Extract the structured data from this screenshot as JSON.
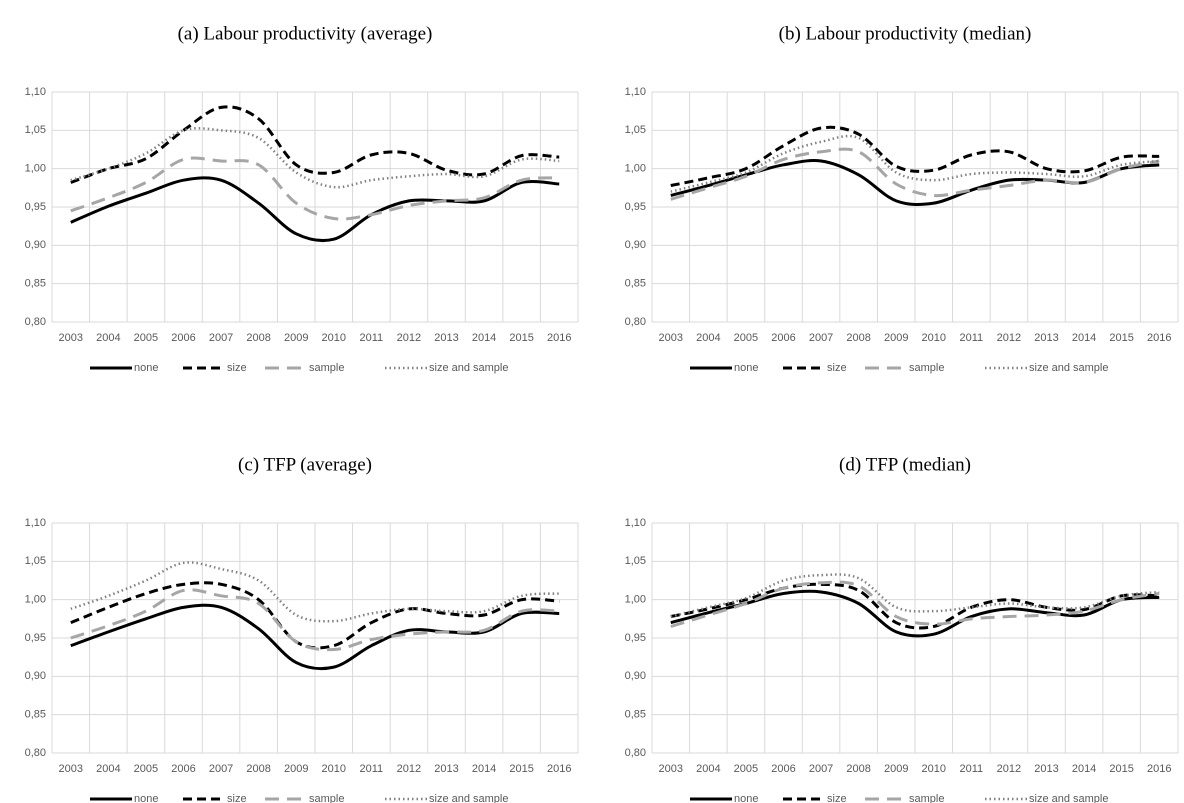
{
  "chart_data": [
    {
      "type": "line",
      "title": "(a) Labour productivity (average)",
      "categories": [
        "2003",
        "2004",
        "2005",
        "2006",
        "2007",
        "2008",
        "2009",
        "2010",
        "2011",
        "2012",
        "2013",
        "2014",
        "2015",
        "2016"
      ],
      "ylim": [
        0.8,
        1.1
      ],
      "yticks": [
        {
          "value": 0.8,
          "label": "0,80"
        },
        {
          "value": 0.85,
          "label": "0,85"
        },
        {
          "value": 0.9,
          "label": "0,90"
        },
        {
          "value": 0.95,
          "label": "0,95"
        },
        {
          "value": 1.0,
          "label": "1,00"
        },
        {
          "value": 1.05,
          "label": "1,05"
        },
        {
          "value": 1.1,
          "label": "1,10"
        }
      ],
      "grid": true,
      "series": [
        {
          "name": "none",
          "color": "#000000",
          "values": [
            0.93,
            0.951,
            0.968,
            0.985,
            0.985,
            0.955,
            0.915,
            0.908,
            0.94,
            0.958,
            0.958,
            0.958,
            0.982,
            0.98
          ]
        },
        {
          "name": "size",
          "color": "#000000",
          "values": [
            0.982,
            1.0,
            1.013,
            1.05,
            1.08,
            1.065,
            1.005,
            0.995,
            1.018,
            1.02,
            0.998,
            0.993,
            1.017,
            1.015
          ]
        },
        {
          "name": "sample",
          "color": "#a6a6a6",
          "values": [
            0.945,
            0.962,
            0.982,
            1.012,
            1.01,
            1.005,
            0.955,
            0.935,
            0.94,
            0.952,
            0.958,
            0.962,
            0.985,
            0.988
          ]
        },
        {
          "name": "size and sample",
          "color": "#808080",
          "values": [
            0.985,
            1.0,
            1.02,
            1.05,
            1.05,
            1.04,
            0.995,
            0.976,
            0.985,
            0.99,
            0.993,
            0.99,
            1.012,
            1.01
          ]
        }
      ]
    },
    {
      "type": "line",
      "title": "(b) Labour productivity (median)",
      "categories": [
        "2003",
        "2004",
        "2005",
        "2006",
        "2007",
        "2008",
        "2009",
        "2010",
        "2011",
        "2012",
        "2013",
        "2014",
        "2015",
        "2016"
      ],
      "ylim": [
        0.8,
        1.1
      ],
      "yticks": [
        {
          "value": 0.8,
          "label": "0,80"
        },
        {
          "value": 0.85,
          "label": "0,85"
        },
        {
          "value": 0.9,
          "label": "0,90"
        },
        {
          "value": 0.95,
          "label": "0,95"
        },
        {
          "value": 1.0,
          "label": "1,00"
        },
        {
          "value": 1.05,
          "label": "1,05"
        },
        {
          "value": 1.1,
          "label": "1,10"
        }
      ],
      "grid": true,
      "series": [
        {
          "name": "none",
          "color": "#000000",
          "values": [
            0.965,
            0.978,
            0.992,
            1.005,
            1.01,
            0.992,
            0.958,
            0.955,
            0.972,
            0.985,
            0.985,
            0.982,
            1.0,
            1.005
          ]
        },
        {
          "name": "size",
          "color": "#000000",
          "values": [
            0.978,
            0.988,
            1.0,
            1.03,
            1.053,
            1.045,
            1.003,
            0.998,
            1.018,
            1.022,
            1.0,
            0.997,
            1.015,
            1.016
          ]
        },
        {
          "name": "sample",
          "color": "#a6a6a6",
          "values": [
            0.96,
            0.975,
            0.99,
            1.012,
            1.022,
            1.022,
            0.98,
            0.965,
            0.972,
            0.978,
            0.985,
            0.982,
            1.0,
            1.01
          ]
        },
        {
          "name": "size and sample",
          "color": "#808080",
          "values": [
            0.97,
            0.982,
            0.995,
            1.02,
            1.035,
            1.04,
            0.995,
            0.985,
            0.993,
            0.995,
            0.993,
            0.99,
            1.005,
            1.01
          ]
        }
      ]
    },
    {
      "type": "line",
      "title": "(c) TFP (average)",
      "categories": [
        "2003",
        "2004",
        "2005",
        "2006",
        "2007",
        "2008",
        "2009",
        "2010",
        "2011",
        "2012",
        "2013",
        "2014",
        "2015",
        "2016"
      ],
      "ylim": [
        0.8,
        1.1
      ],
      "yticks": [
        {
          "value": 0.8,
          "label": "0,80"
        },
        {
          "value": 0.85,
          "label": "0,85"
        },
        {
          "value": 0.9,
          "label": "0,90"
        },
        {
          "value": 0.95,
          "label": "0,95"
        },
        {
          "value": 1.0,
          "label": "1,00"
        },
        {
          "value": 1.05,
          "label": "1,05"
        },
        {
          "value": 1.1,
          "label": "1,10"
        }
      ],
      "grid": true,
      "series": [
        {
          "name": "none",
          "color": "#000000",
          "values": [
            0.94,
            0.958,
            0.975,
            0.99,
            0.99,
            0.962,
            0.918,
            0.912,
            0.94,
            0.96,
            0.958,
            0.958,
            0.982,
            0.982
          ]
        },
        {
          "name": "size",
          "color": "#000000",
          "values": [
            0.97,
            0.99,
            1.008,
            1.02,
            1.02,
            1.0,
            0.945,
            0.94,
            0.97,
            0.988,
            0.982,
            0.98,
            1.0,
            0.998
          ]
        },
        {
          "name": "sample",
          "color": "#a6a6a6",
          "values": [
            0.95,
            0.966,
            0.985,
            1.012,
            1.005,
            0.995,
            0.945,
            0.935,
            0.948,
            0.955,
            0.958,
            0.96,
            0.985,
            0.985
          ]
        },
        {
          "name": "size and sample",
          "color": "#808080",
          "values": [
            0.988,
            1.005,
            1.025,
            1.048,
            1.04,
            1.025,
            0.98,
            0.972,
            0.982,
            0.988,
            0.985,
            0.985,
            1.005,
            1.008
          ]
        }
      ]
    },
    {
      "type": "line",
      "title": "(d) TFP (median)",
      "categories": [
        "2003",
        "2004",
        "2005",
        "2006",
        "2007",
        "2008",
        "2009",
        "2010",
        "2011",
        "2012",
        "2013",
        "2014",
        "2015",
        "2016"
      ],
      "ylim": [
        0.8,
        1.1
      ],
      "yticks": [
        {
          "value": 0.8,
          "label": "0,80"
        },
        {
          "value": 0.85,
          "label": "0,85"
        },
        {
          "value": 0.9,
          "label": "0,90"
        },
        {
          "value": 0.95,
          "label": "0,95"
        },
        {
          "value": 1.0,
          "label": "1,00"
        },
        {
          "value": 1.05,
          "label": "1,05"
        },
        {
          "value": 1.1,
          "label": "1,10"
        }
      ],
      "grid": true,
      "series": [
        {
          "name": "none",
          "color": "#000000",
          "values": [
            0.97,
            0.983,
            0.995,
            1.008,
            1.01,
            0.995,
            0.958,
            0.955,
            0.978,
            0.988,
            0.983,
            0.98,
            1.0,
            1.003
          ]
        },
        {
          "name": "size",
          "color": "#000000",
          "values": [
            0.978,
            0.988,
            1.0,
            1.015,
            1.02,
            1.012,
            0.97,
            0.965,
            0.99,
            1.0,
            0.99,
            0.987,
            1.005,
            1.005
          ]
        },
        {
          "name": "sample",
          "color": "#a6a6a6",
          "values": [
            0.965,
            0.98,
            0.995,
            1.015,
            1.022,
            1.018,
            0.978,
            0.968,
            0.975,
            0.978,
            0.98,
            0.985,
            1.0,
            1.008
          ]
        },
        {
          "name": "size and sample",
          "color": "#808080",
          "values": [
            0.978,
            0.99,
            1.002,
            1.025,
            1.032,
            1.028,
            0.99,
            0.985,
            0.99,
            0.995,
            0.99,
            0.99,
            1.005,
            1.01
          ]
        }
      ]
    }
  ]
}
